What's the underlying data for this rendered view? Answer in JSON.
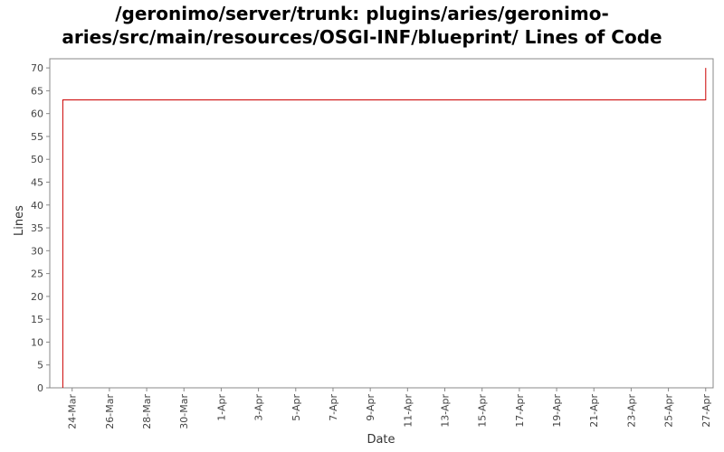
{
  "chart_data": {
    "type": "line",
    "title_lines": [
      "/geronimo/server/trunk: plugins/aries/geronimo-",
      "aries/src/main/resources/OSGI-INF/blueprint/ Lines of Code"
    ],
    "xlabel": "Date",
    "ylabel": "Lines",
    "ylim": [
      0,
      72
    ],
    "yticks": [
      0,
      5,
      10,
      15,
      20,
      25,
      30,
      35,
      40,
      45,
      50,
      55,
      60,
      65,
      70
    ],
    "x_tick_labels": [
      "24-Mar",
      "26-Mar",
      "28-Mar",
      "30-Mar",
      "1-Apr",
      "3-Apr",
      "5-Apr",
      "7-Apr",
      "9-Apr",
      "11-Apr",
      "13-Apr",
      "15-Apr",
      "17-Apr",
      "19-Apr",
      "21-Apr",
      "23-Apr",
      "25-Apr",
      "27-Apr"
    ],
    "x_range_days": [
      -1.2,
      34.4
    ],
    "series": [
      {
        "color": "#cc0000",
        "points": [
          {
            "x": -0.5,
            "y": 0
          },
          {
            "x": -0.5,
            "y": 63
          },
          {
            "x": 34.0,
            "y": 63
          },
          {
            "x": 34.0,
            "y": 70
          }
        ]
      }
    ],
    "grid": false
  }
}
